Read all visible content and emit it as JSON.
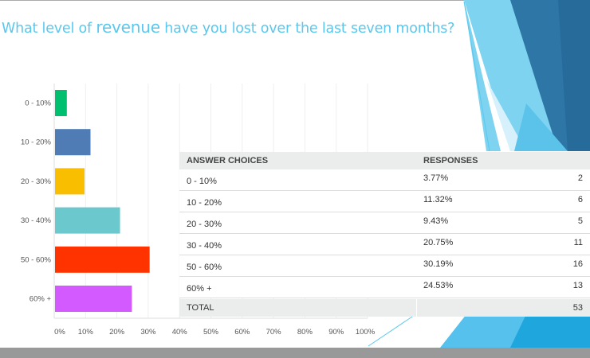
{
  "title": {
    "pre": "What level of ",
    "emph": "revenue",
    "post": " have you lost over the last seven months?"
  },
  "chart_data": {
    "type": "bar",
    "orientation": "horizontal",
    "categories": [
      "0 - 10%",
      "10 - 20%",
      "20 - 30%",
      "30 - 40%",
      "50 - 60%",
      "60% +"
    ],
    "values": [
      3.77,
      11.32,
      9.43,
      20.75,
      30.19,
      24.53
    ],
    "colors": [
      "#00bf6f",
      "#507cb6",
      "#f9be00",
      "#6bc8cd",
      "#ff3300",
      "#d25aff"
    ],
    "xlim": [
      0,
      100
    ],
    "xticks": [
      "0%",
      "10%",
      "20%",
      "30%",
      "40%",
      "50%",
      "60%",
      "70%",
      "80%",
      "90%",
      "100%"
    ],
    "grid": true
  },
  "table": {
    "headers": [
      "ANSWER CHOICES",
      "RESPONSES"
    ],
    "rows": [
      {
        "choice": "0 - 10%",
        "percent": "3.77%",
        "count": "2"
      },
      {
        "choice": "10 - 20%",
        "percent": "11.32%",
        "count": "6"
      },
      {
        "choice": "20 - 30%",
        "percent": "9.43%",
        "count": "5"
      },
      {
        "choice": "30 - 40%",
        "percent": "20.75%",
        "count": "11"
      },
      {
        "choice": "50 - 60%",
        "percent": "30.19%",
        "count": "16"
      },
      {
        "choice": "60% +",
        "percent": "24.53%",
        "count": "13"
      }
    ],
    "total_label": "TOTAL",
    "total_count": "53"
  }
}
